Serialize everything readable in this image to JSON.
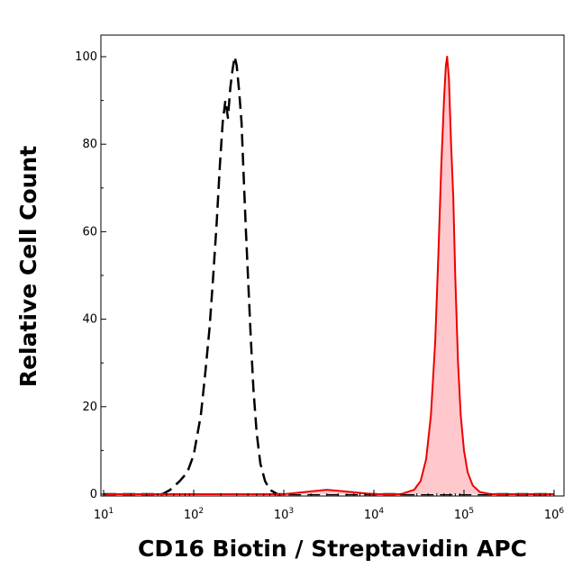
{
  "chart_data": {
    "type": "area",
    "xlabel": "CD16 Biotin / Streptavidin APC",
    "ylabel": "Relative Cell Count",
    "x_scale": "log",
    "xlim": [
      10,
      1000000
    ],
    "ylim": [
      0,
      100
    ],
    "x_ticks": [
      {
        "base": "10",
        "exp": "1"
      },
      {
        "base": "10",
        "exp": "2"
      },
      {
        "base": "10",
        "exp": "3"
      },
      {
        "base": "10",
        "exp": "4"
      },
      {
        "base": "10",
        "exp": "5"
      },
      {
        "base": "10",
        "exp": "6"
      }
    ],
    "y_ticks": [
      "0",
      "20",
      "40",
      "60",
      "80",
      "100"
    ],
    "grid": false,
    "series": [
      {
        "style": "dashed",
        "color": "#000000",
        "fill": "none",
        "points": [
          [
            10,
            0
          ],
          [
            30,
            0
          ],
          [
            45,
            0
          ],
          [
            55,
            1
          ],
          [
            70,
            3
          ],
          [
            85,
            5
          ],
          [
            100,
            9
          ],
          [
            120,
            18
          ],
          [
            135,
            28
          ],
          [
            150,
            38
          ],
          [
            165,
            50
          ],
          [
            180,
            62
          ],
          [
            195,
            75
          ],
          [
            210,
            85
          ],
          [
            225,
            90
          ],
          [
            240,
            86
          ],
          [
            255,
            93
          ],
          [
            270,
            97
          ],
          [
            285,
            100
          ],
          [
            300,
            98
          ],
          [
            320,
            92
          ],
          [
            340,
            85
          ],
          [
            360,
            72
          ],
          [
            380,
            60
          ],
          [
            400,
            50
          ],
          [
            430,
            36
          ],
          [
            460,
            24
          ],
          [
            500,
            14
          ],
          [
            550,
            7
          ],
          [
            620,
            3
          ],
          [
            700,
            1
          ],
          [
            850,
            0
          ],
          [
            1000,
            0
          ],
          [
            3000,
            0
          ],
          [
            10000,
            0
          ],
          [
            100000,
            0
          ],
          [
            1000000,
            0
          ]
        ]
      },
      {
        "style": "solid",
        "color": "#ee0000",
        "fill": "#ffc8cc",
        "points": [
          [
            10,
            0
          ],
          [
            1000,
            0
          ],
          [
            3000,
            1
          ],
          [
            10000,
            0
          ],
          [
            20000,
            0
          ],
          [
            28000,
            1
          ],
          [
            33000,
            3
          ],
          [
            38000,
            8
          ],
          [
            43000,
            18
          ],
          [
            48000,
            35
          ],
          [
            52000,
            55
          ],
          [
            56000,
            75
          ],
          [
            60000,
            90
          ],
          [
            63000,
            98
          ],
          [
            65000,
            100
          ],
          [
            68000,
            95
          ],
          [
            72000,
            80
          ],
          [
            76000,
            68
          ],
          [
            80000,
            50
          ],
          [
            86000,
            30
          ],
          [
            92000,
            18
          ],
          [
            100000,
            10
          ],
          [
            110000,
            5
          ],
          [
            125000,
            2
          ],
          [
            150000,
            0.5
          ],
          [
            200000,
            0
          ],
          [
            1000000,
            0
          ]
        ]
      }
    ]
  }
}
